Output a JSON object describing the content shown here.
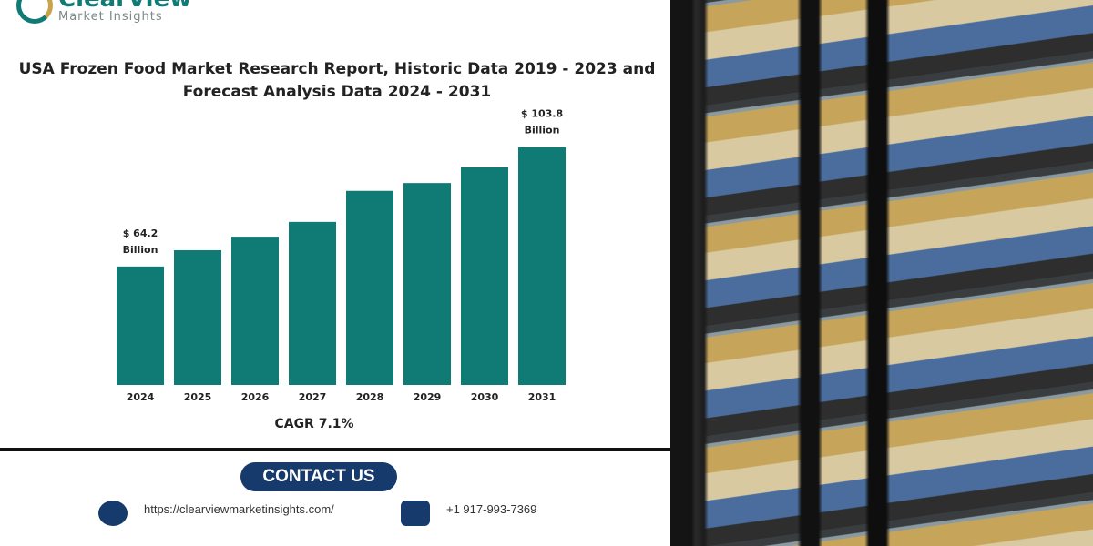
{
  "brand": {
    "name": "ClearView",
    "tagline": "Market Insights"
  },
  "chart_data": {
    "type": "bar",
    "title": "USA Frozen Food Market Research Report, Historic Data 2019 - 2023 and Forecast Analysis Data 2024 - 2031",
    "categories": [
      "2024",
      "2025",
      "2026",
      "2027",
      "2028",
      "2029",
      "2030",
      "2031"
    ],
    "values": [
      64.2,
      69.6,
      74.1,
      79.0,
      89.3,
      91.9,
      97.1,
      103.8
    ],
    "unit": "Billion USD",
    "annotations": [
      {
        "category": "2024",
        "line1": "$ 64.2",
        "line2": "Billion"
      },
      {
        "category": "2031",
        "line1": "$ 103.8",
        "line2": "Billion"
      }
    ],
    "color": "#0f7b74",
    "grid": false,
    "xlabel": "",
    "ylabel": ""
  },
  "cagr": "CAGR 7.1%",
  "contact": {
    "button": "CONTACT US",
    "website": "https://clearviewmarketinsights.com/",
    "phone": "+1 917-993-7369"
  }
}
